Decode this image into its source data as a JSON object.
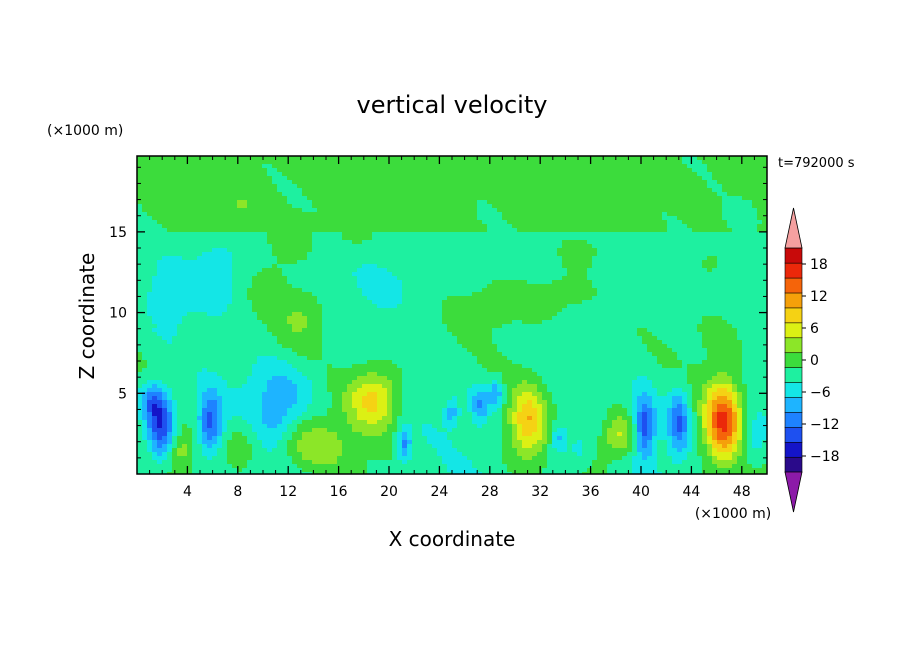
{
  "chart_data": {
    "type": "heatmap",
    "title": "vertical velocity",
    "xlabel": "X coordinate",
    "ylabel": "Z coordinate",
    "x_unit": "(×1000 m)",
    "y_unit": "(×1000 m)",
    "time_label": "t=792000 s",
    "xlim": [
      0,
      50
    ],
    "ylim": [
      0,
      19.7
    ],
    "x_ticks": [
      4,
      8,
      12,
      16,
      20,
      24,
      28,
      32,
      36,
      40,
      44,
      48
    ],
    "y_ticks": [
      5,
      10,
      15
    ],
    "colorbar": {
      "levels": [
        -21,
        -18,
        -15,
        -12,
        -9,
        -6,
        -3,
        0,
        3,
        6,
        9,
        12,
        15,
        18,
        21
      ],
      "tick_values": [
        -18,
        -12,
        -6,
        0,
        6,
        12,
        18
      ],
      "tick_labels": [
        "−18",
        "−12",
        "−6",
        "0",
        "6",
        "12",
        "18"
      ],
      "under_color": "#8c1aa8",
      "over_color": "#f5a0a0"
    },
    "features": [
      {
        "x": 2.0,
        "z": 2.8,
        "value": -14,
        "sx": 0.8,
        "sz": 1.4
      },
      {
        "x": 1.2,
        "z": 4.5,
        "value": -9,
        "sx": 0.7,
        "sz": 0.9
      },
      {
        "x": 3.3,
        "z": 1.6,
        "value": 6,
        "sx": 0.8,
        "sz": 0.9
      },
      {
        "x": 5.8,
        "z": 3.2,
        "value": -12,
        "sx": 0.7,
        "sz": 1.3
      },
      {
        "x": 8.4,
        "z": 2.0,
        "value": 4,
        "sx": 1.0,
        "sz": 1.0
      },
      {
        "x": 11.0,
        "z": 3.2,
        "value": -5,
        "sx": 1.3,
        "sz": 1.2
      },
      {
        "x": 11.5,
        "z": 5.2,
        "value": -5,
        "sx": 2.0,
        "sz": 1.3
      },
      {
        "x": 14.0,
        "z": 1.8,
        "value": 6,
        "sx": 2.2,
        "sz": 1.2
      },
      {
        "x": 18.8,
        "z": 4.7,
        "value": 11,
        "sx": 1.4,
        "sz": 1.3
      },
      {
        "x": 21.2,
        "z": 1.8,
        "value": -9,
        "sx": 0.4,
        "sz": 0.8
      },
      {
        "x": 25.0,
        "z": 3.8,
        "value": -6,
        "sx": 0.4,
        "sz": 0.6
      },
      {
        "x": 27.2,
        "z": 4.3,
        "value": -8,
        "sx": 0.5,
        "sz": 0.8
      },
      {
        "x": 28.5,
        "z": 5.0,
        "value": -8,
        "sx": 0.4,
        "sz": 0.6
      },
      {
        "x": 31.0,
        "z": 3.2,
        "value": 12,
        "sx": 1.0,
        "sz": 1.5
      },
      {
        "x": 33.5,
        "z": 2.2,
        "value": -7,
        "sx": 0.5,
        "sz": 0.7
      },
      {
        "x": 35.0,
        "z": 1.5,
        "value": -4,
        "sx": 0.6,
        "sz": 0.7
      },
      {
        "x": 38.3,
        "z": 2.4,
        "value": 9,
        "sx": 1.0,
        "sz": 1.0
      },
      {
        "x": 40.3,
        "z": 3.0,
        "value": -13,
        "sx": 0.6,
        "sz": 1.3
      },
      {
        "x": 43.0,
        "z": 3.2,
        "value": -11,
        "sx": 0.6,
        "sz": 1.4
      },
      {
        "x": 46.5,
        "z": 3.3,
        "value": 19,
        "sx": 1.0,
        "sz": 1.7
      },
      {
        "x": 49.0,
        "z": 2.2,
        "value": -5,
        "sx": 0.7,
        "sz": 1.0
      },
      {
        "x": 13.0,
        "z": 9.6,
        "value": 4,
        "sx": 1.2,
        "sz": 1.1
      },
      {
        "x": 10.5,
        "z": 11.5,
        "value": 2,
        "sx": 1.2,
        "sz": 1.2
      },
      {
        "x": 33.0,
        "z": 11.0,
        "value": 3,
        "sx": 2.8,
        "sz": 1.2
      },
      {
        "x": 27.0,
        "z": 10.0,
        "value": 2,
        "sx": 1.8,
        "sz": 0.9
      },
      {
        "x": 6.5,
        "z": 12.5,
        "value": -4,
        "sx": 1.3,
        "sz": 1.6
      },
      {
        "x": 2.5,
        "z": 11.0,
        "value": -3,
        "sx": 1.4,
        "sz": 1.6
      },
      {
        "x": 20.0,
        "z": 12.0,
        "value": -2,
        "sx": 2.2,
        "sz": 1.3
      },
      {
        "x": 40.5,
        "z": 11.8,
        "value": -2,
        "sx": 2.5,
        "sz": 1.2
      },
      {
        "x": 46.0,
        "z": 8.5,
        "value": 2,
        "sx": 1.3,
        "sz": 1.1
      },
      {
        "x": 8.0,
        "z": 16.5,
        "value": 2,
        "sx": 1.4,
        "sz": 1.0
      },
      {
        "x": 12.5,
        "z": 14.5,
        "value": 3,
        "sx": 1.2,
        "sz": 0.8
      },
      {
        "x": 17.0,
        "z": 15.0,
        "value": 2.5,
        "sx": 1.3,
        "sz": 0.9
      },
      {
        "x": 25.5,
        "z": 17.5,
        "value": 2.5,
        "sx": 0.6,
        "sz": 0.6
      },
      {
        "x": 35.0,
        "z": 13.8,
        "value": 3,
        "sx": 1.0,
        "sz": 0.6
      },
      {
        "x": 45.5,
        "z": 13.0,
        "value": 3,
        "sx": 0.7,
        "sz": 0.6
      },
      {
        "x": 48.0,
        "z": 16.0,
        "value": -2,
        "sx": 0.8,
        "sz": 0.6
      }
    ]
  }
}
